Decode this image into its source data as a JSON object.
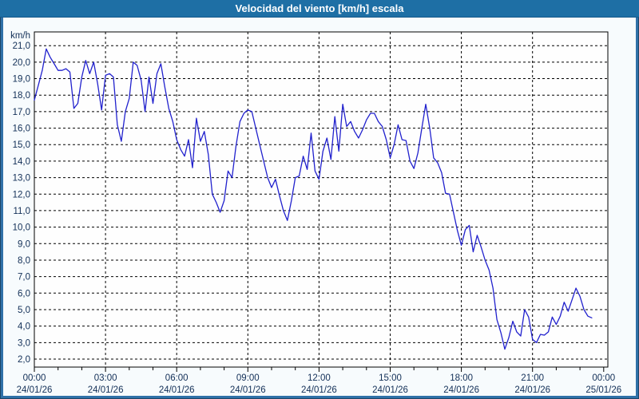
{
  "window": {
    "title": "Velocidad del viento [km/h] escala"
  },
  "colors": {
    "titlebar_bg": "#1e6fa5",
    "title_text": "#ffffff",
    "frame_border": "#2f71a8",
    "page_bg": "#f7fbfd",
    "plot_bg": "#fefefe",
    "plot_border": "#000000",
    "grid": "#000000",
    "tick_text": "#122f57",
    "line": "#2121cd"
  },
  "chart_data": {
    "type": "line",
    "title": "Velocidad del viento [km/h] escala",
    "ylabel": "km/h",
    "ylim": [
      2,
      21
    ],
    "ytick_step": 1,
    "ytick_labels": [
      "21,0",
      "20,0",
      "19,0",
      "18,0",
      "17,0",
      "16,0",
      "15,0",
      "14,0",
      "13,0",
      "12,0",
      "11,0",
      "10,0",
      "9,0",
      "8,0",
      "7,0",
      "6,0",
      "5,0",
      "4,0",
      "3,0",
      "2,0"
    ],
    "grid": true,
    "xticks": [
      {
        "hour": 0,
        "time": "00:00",
        "date": "24/01/26"
      },
      {
        "hour": 3,
        "time": "03:00",
        "date": "24/01/26"
      },
      {
        "hour": 6,
        "time": "06:00",
        "date": "24/01/26"
      },
      {
        "hour": 9,
        "time": "09:00",
        "date": "24/01/26"
      },
      {
        "hour": 12,
        "time": "12:00",
        "date": "24/01/26"
      },
      {
        "hour": 15,
        "time": "15:00",
        "date": "24/01/26"
      },
      {
        "hour": 18,
        "time": "18:00",
        "date": "24/01/26"
      },
      {
        "hour": 21,
        "time": "21:00",
        "date": "24/01/26"
      },
      {
        "hour": 24,
        "time": "00:00",
        "date": "25/01/26"
      }
    ],
    "series": [
      {
        "name": "Velocidad del viento [km/h]",
        "x_start_min": 0,
        "x_step_min": 10,
        "values": [
          17.7,
          18.6,
          19.5,
          20.8,
          20.3,
          19.9,
          19.5,
          19.5,
          19.6,
          19.4,
          17.2,
          17.5,
          19.1,
          20.1,
          19.3,
          20.0,
          18.7,
          17.1,
          19.2,
          19.3,
          19.1,
          16.2,
          15.2,
          17.0,
          17.8,
          20.0,
          19.8,
          18.9,
          17.0,
          19.1,
          17.5,
          19.3,
          19.9,
          18.5,
          17.2,
          16.4,
          15.3,
          14.7,
          14.3,
          15.3,
          13.6,
          16.6,
          15.2,
          15.8,
          14.4,
          12.0,
          11.5,
          10.9,
          11.6,
          13.4,
          13.0,
          14.9,
          16.4,
          16.9,
          17.1,
          17.0,
          16.0,
          15.0,
          14.0,
          13.0,
          12.4,
          12.9,
          11.9,
          11.0,
          10.4,
          11.6,
          13.0,
          13.1,
          14.3,
          13.5,
          15.7,
          13.4,
          12.9,
          14.6,
          15.4,
          14.1,
          16.7,
          14.6,
          17.45,
          16.1,
          16.4,
          15.8,
          15.4,
          15.9,
          16.5,
          16.9,
          16.9,
          16.4,
          16.1,
          15.3,
          14.2,
          15.0,
          16.2,
          15.3,
          15.25,
          14.0,
          13.55,
          14.5,
          16.0,
          17.45,
          16.0,
          14.2,
          13.9,
          13.3,
          12.05,
          12.0,
          10.9,
          9.8,
          8.9,
          9.85,
          10.1,
          8.5,
          9.5,
          8.8,
          8.0,
          7.4,
          6.3,
          4.4,
          3.6,
          2.6,
          3.3,
          4.3,
          3.65,
          3.4,
          5.0,
          4.55,
          3.2,
          3.0,
          3.5,
          3.45,
          3.65,
          4.55,
          4.1,
          4.6,
          5.45,
          4.9,
          5.6,
          6.3,
          5.8,
          5.0,
          4.6,
          4.5
        ]
      }
    ]
  }
}
